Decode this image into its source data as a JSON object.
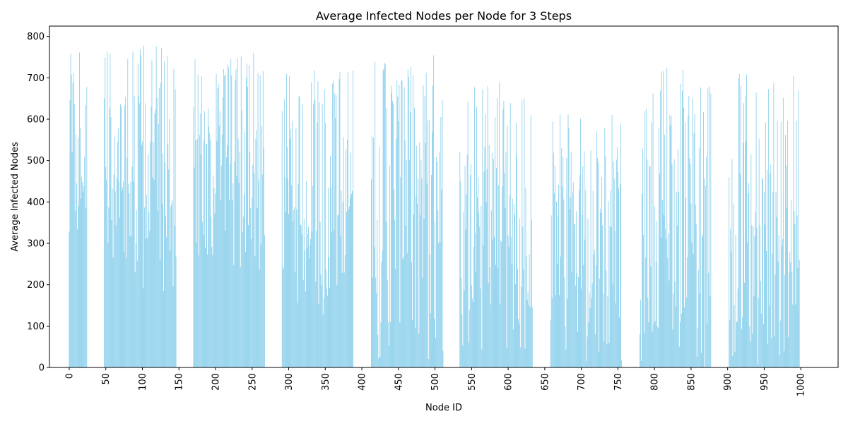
{
  "chart_data": {
    "type": "bar",
    "title": "Average Infected Nodes per Node for 3 Steps",
    "xlabel": "Node ID",
    "ylabel": "Average Infected Nodes",
    "xlim": [
      -27,
      1051
    ],
    "ylim": [
      0,
      825
    ],
    "x_ticks": [
      0,
      50,
      100,
      150,
      200,
      250,
      300,
      350,
      400,
      450,
      500,
      550,
      600,
      650,
      700,
      750,
      800,
      850,
      900,
      950,
      1000
    ],
    "y_ticks": [
      0,
      100,
      200,
      300,
      400,
      500,
      600,
      700,
      800
    ],
    "x_tick_rotation": 90,
    "bar_color": "#87ceeb",
    "grid": false,
    "clusters": [
      {
        "x_start": 0,
        "x_end": 24,
        "min": 300,
        "max": 780
      },
      {
        "x_start": 48,
        "x_end": 146,
        "min": 180,
        "max": 780
      },
      {
        "x_start": 170,
        "x_end": 267,
        "min": 200,
        "max": 765
      },
      {
        "x_start": 291,
        "x_end": 388,
        "min": 110,
        "max": 720
      },
      {
        "x_start": 413,
        "x_end": 511,
        "min": 10,
        "max": 765
      },
      {
        "x_start": 534,
        "x_end": 633,
        "min": 5,
        "max": 705
      },
      {
        "x_start": 658,
        "x_end": 755,
        "min": 0,
        "max": 615
      },
      {
        "x_start": 780,
        "x_end": 877,
        "min": 0,
        "max": 735
      },
      {
        "x_start": 902,
        "x_end": 998,
        "min": 0,
        "max": 710
      }
    ]
  }
}
